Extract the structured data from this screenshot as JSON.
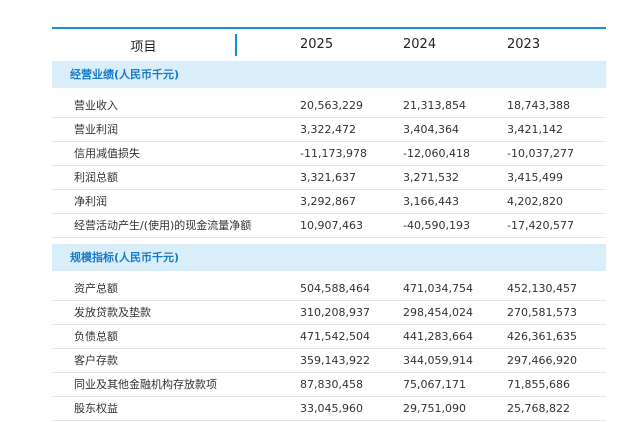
{
  "header": {
    "item": "项目",
    "years": [
      "2025",
      "2024",
      "2023"
    ]
  },
  "sections": [
    {
      "title": "经营业绩(人民币千元)",
      "rows": [
        {
          "label": "营业收入",
          "values": [
            "20,563,229",
            "21,313,854",
            "18,743,388"
          ]
        },
        {
          "label": "营业利润",
          "values": [
            "3,322,472",
            "3,404,364",
            "3,421,142"
          ]
        },
        {
          "label": "信用减值损失",
          "values": [
            "-11,173,978",
            "-12,060,418",
            "-10,037,277"
          ]
        },
        {
          "label": "利润总额",
          "values": [
            "3,321,637",
            "3,271,532",
            "3,415,499"
          ]
        },
        {
          "label": "净利润",
          "values": [
            "3,292,867",
            "3,166,443",
            "4,202,820"
          ]
        },
        {
          "label": "经营活动产生/(使用)的现金流量净额",
          "values": [
            "10,907,463",
            "-40,590,193",
            "-17,420,577"
          ]
        }
      ]
    },
    {
      "title": "规模指标(人民币千元)",
      "rows": [
        {
          "label": "资产总额",
          "values": [
            "504,588,464",
            "471,034,754",
            "452,130,457"
          ]
        },
        {
          "label": "发放贷款及垫款",
          "values": [
            "310,208,937",
            "298,454,024",
            "270,581,573"
          ]
        },
        {
          "label": "负债总额",
          "values": [
            "471,542,504",
            "441,283,664",
            "426,361,635"
          ]
        },
        {
          "label": "客户存款",
          "values": [
            "359,143,922",
            "344,059,914",
            "297,466,920"
          ]
        },
        {
          "label": "同业及其他金融机构存放款项",
          "values": [
            "87,830,458",
            "75,067,171",
            "71,855,686"
          ]
        },
        {
          "label": "股东权益",
          "values": [
            "33,045,960",
            "29,751,090",
            "25,768,822"
          ]
        }
      ]
    }
  ]
}
